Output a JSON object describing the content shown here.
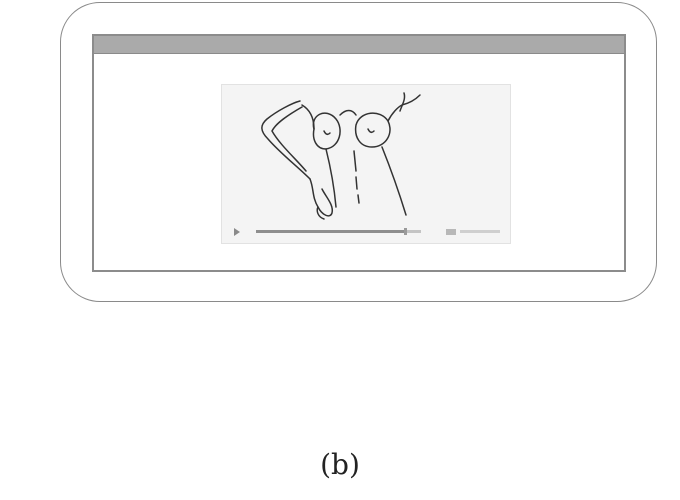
{
  "caption": "(b)",
  "device": {
    "icons": {
      "play": "play-icon",
      "volume": "volume-icon"
    },
    "video": {
      "progress": 0.9
    }
  },
  "colors": {
    "frame": "#8a8a8a",
    "titlebar": "#aaaaaa",
    "panel": "#f4f4f4",
    "sketch": "#333333"
  }
}
